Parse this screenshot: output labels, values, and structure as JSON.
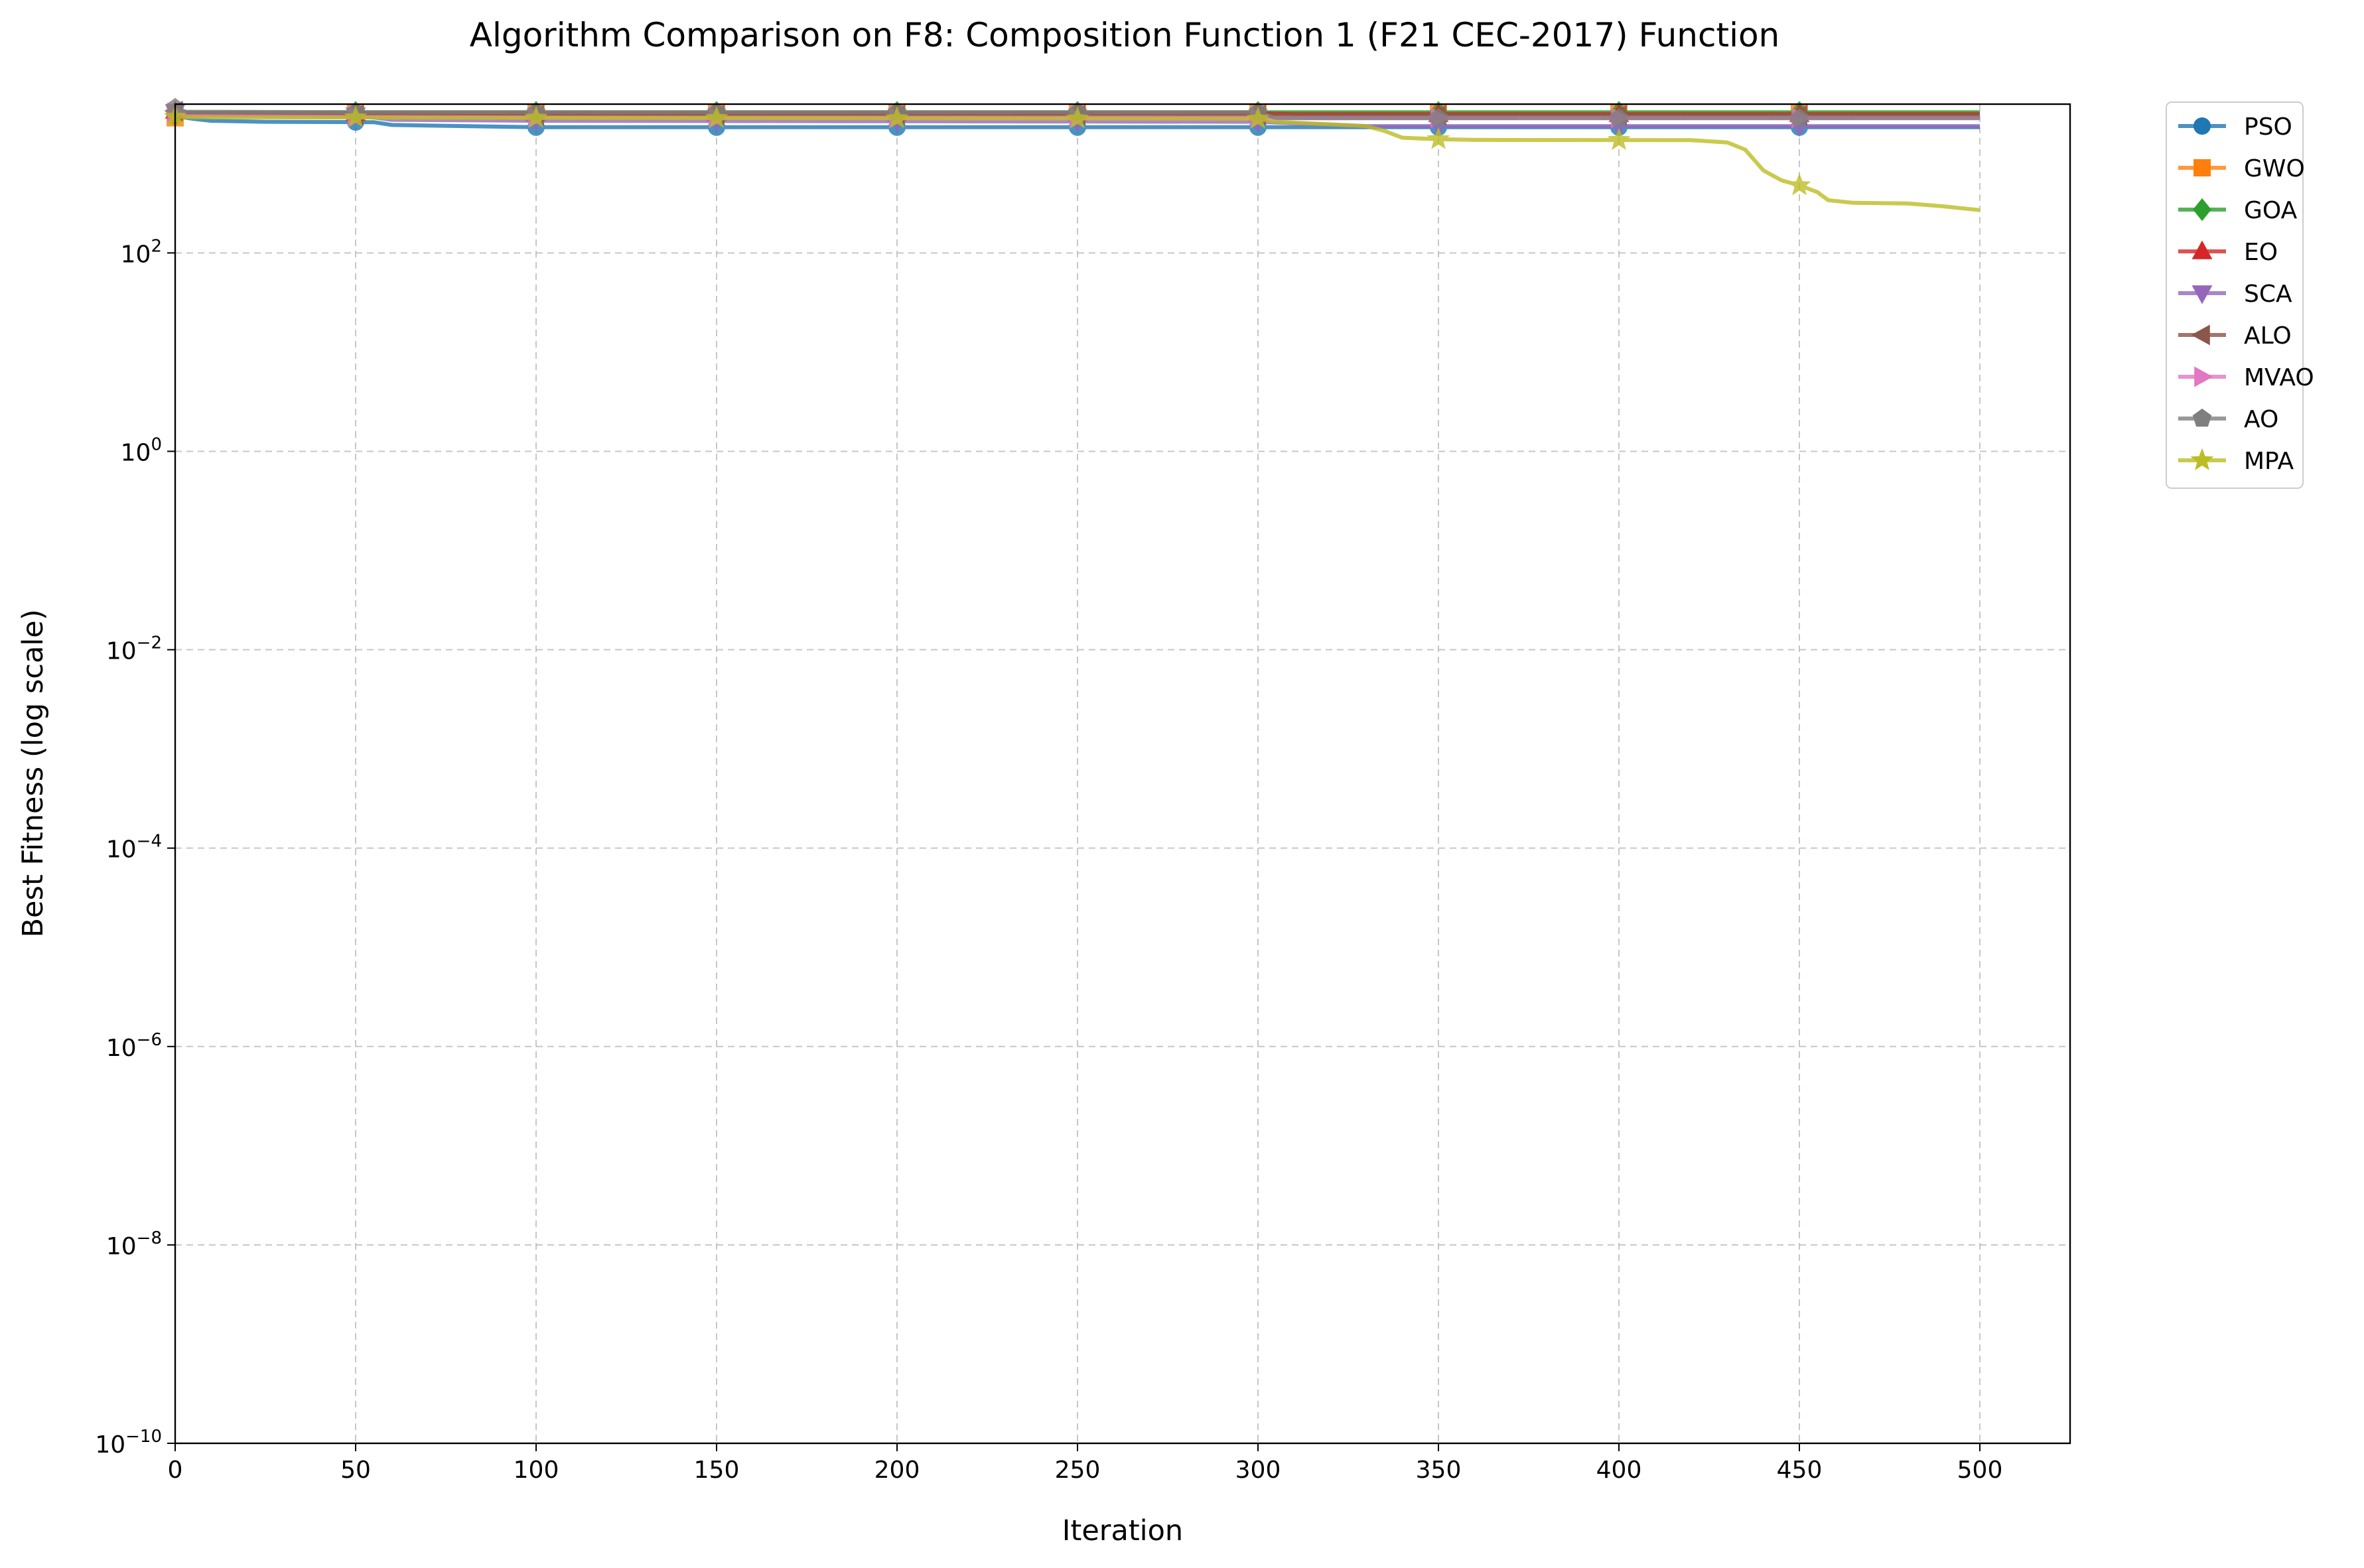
{
  "chart_data": {
    "type": "line",
    "title": "Algorithm Comparison on F8: Composition Function 1 (F21 CEC-2017) Function",
    "xlabel": "Iteration",
    "ylabel": "Best Fitness (log scale)",
    "xlim": [
      0,
      525
    ],
    "ylim_log10": [
      -10,
      3.5
    ],
    "yscale": "log",
    "grid": true,
    "legend_position": "outside-right-top",
    "x_ticks": [
      {
        "value": 0,
        "label": "0"
      },
      {
        "value": 50,
        "label": "50"
      },
      {
        "value": 100,
        "label": "100"
      },
      {
        "value": 150,
        "label": "150"
      },
      {
        "value": 200,
        "label": "200"
      },
      {
        "value": 250,
        "label": "250"
      },
      {
        "value": 300,
        "label": "300"
      },
      {
        "value": 350,
        "label": "350"
      },
      {
        "value": 400,
        "label": "400"
      },
      {
        "value": 450,
        "label": "450"
      },
      {
        "value": 500,
        "label": "500"
      }
    ],
    "y_ticks": [
      {
        "exp": -10,
        "base": "10",
        "sup": "−10"
      },
      {
        "exp": -8,
        "base": "10",
        "sup": "−8"
      },
      {
        "exp": -6,
        "base": "10",
        "sup": "−6"
      },
      {
        "exp": -4,
        "base": "10",
        "sup": "−4"
      },
      {
        "exp": -2,
        "base": "10",
        "sup": "−2"
      },
      {
        "exp": 0,
        "base": "10",
        "sup": "0"
      },
      {
        "exp": 2,
        "base": "10",
        "sup": "2"
      }
    ],
    "series": [
      {
        "name": "PSO",
        "color": "#1f77b4",
        "marker": "circle",
        "points": [
          [
            0,
            2400
          ],
          [
            5,
            2250
          ],
          [
            10,
            2150
          ],
          [
            25,
            2100
          ],
          [
            55,
            2080
          ],
          [
            60,
            1950
          ],
          [
            100,
            1850
          ],
          [
            300,
            1850
          ],
          [
            500,
            1850
          ]
        ]
      },
      {
        "name": "GWO",
        "color": "#ff7f0e",
        "marker": "square",
        "points": [
          [
            0,
            2300
          ],
          [
            3,
            2550
          ],
          [
            50,
            2560
          ],
          [
            300,
            2560
          ],
          [
            500,
            2560
          ]
        ]
      },
      {
        "name": "GOA",
        "color": "#2ca02c",
        "marker": "diamond",
        "points": [
          [
            0,
            2550
          ],
          [
            2,
            2620
          ],
          [
            50,
            2620
          ],
          [
            300,
            2620
          ],
          [
            500,
            2620
          ]
        ]
      },
      {
        "name": "EO",
        "color": "#d62728",
        "marker": "triangle-up",
        "points": [
          [
            0,
            2700
          ],
          [
            2,
            2560
          ],
          [
            50,
            2560
          ],
          [
            300,
            2560
          ],
          [
            310,
            2500
          ],
          [
            500,
            2500
          ]
        ]
      },
      {
        "name": "SCA",
        "color": "#9467bd",
        "marker": "triangle-down",
        "points": [
          [
            0,
            2650
          ],
          [
            5,
            2480
          ],
          [
            50,
            2450
          ],
          [
            60,
            2200
          ],
          [
            100,
            2150
          ],
          [
            300,
            2100
          ],
          [
            330,
            1900
          ],
          [
            500,
            1900
          ]
        ]
      },
      {
        "name": "ALO",
        "color": "#8c564b",
        "marker": "triangle-left",
        "points": [
          [
            0,
            2700
          ],
          [
            3,
            2500
          ],
          [
            50,
            2450
          ],
          [
            300,
            2450
          ],
          [
            500,
            2450
          ]
        ]
      },
      {
        "name": "MVAO",
        "color": "#e377c2",
        "marker": "triangle-right",
        "points": [
          [
            0,
            2600
          ],
          [
            3,
            2400
          ],
          [
            50,
            2350
          ],
          [
            120,
            2300
          ],
          [
            300,
            2300
          ],
          [
            500,
            2300
          ]
        ]
      },
      {
        "name": "AO",
        "color": "#7f7f7f",
        "marker": "pentagon",
        "points": [
          [
            0,
            2900
          ],
          [
            3,
            2650
          ],
          [
            50,
            2620
          ],
          [
            300,
            2620
          ],
          [
            305,
            2280
          ],
          [
            500,
            2280
          ]
        ]
      },
      {
        "name": "MPA",
        "color": "#bcbd22",
        "marker": "star",
        "points": [
          [
            0,
            2350
          ],
          [
            5,
            2330
          ],
          [
            50,
            2320
          ],
          [
            100,
            2300
          ],
          [
            300,
            2250
          ],
          [
            305,
            2100
          ],
          [
            330,
            1900
          ],
          [
            335,
            1700
          ],
          [
            340,
            1450
          ],
          [
            350,
            1400
          ],
          [
            360,
            1380
          ],
          [
            420,
            1370
          ],
          [
            430,
            1300
          ],
          [
            435,
            1100
          ],
          [
            440,
            680
          ],
          [
            445,
            540
          ],
          [
            450,
            480
          ],
          [
            455,
            410
          ],
          [
            458,
            340
          ],
          [
            465,
            320
          ],
          [
            480,
            315
          ],
          [
            490,
            295
          ],
          [
            500,
            270
          ]
        ]
      }
    ]
  }
}
